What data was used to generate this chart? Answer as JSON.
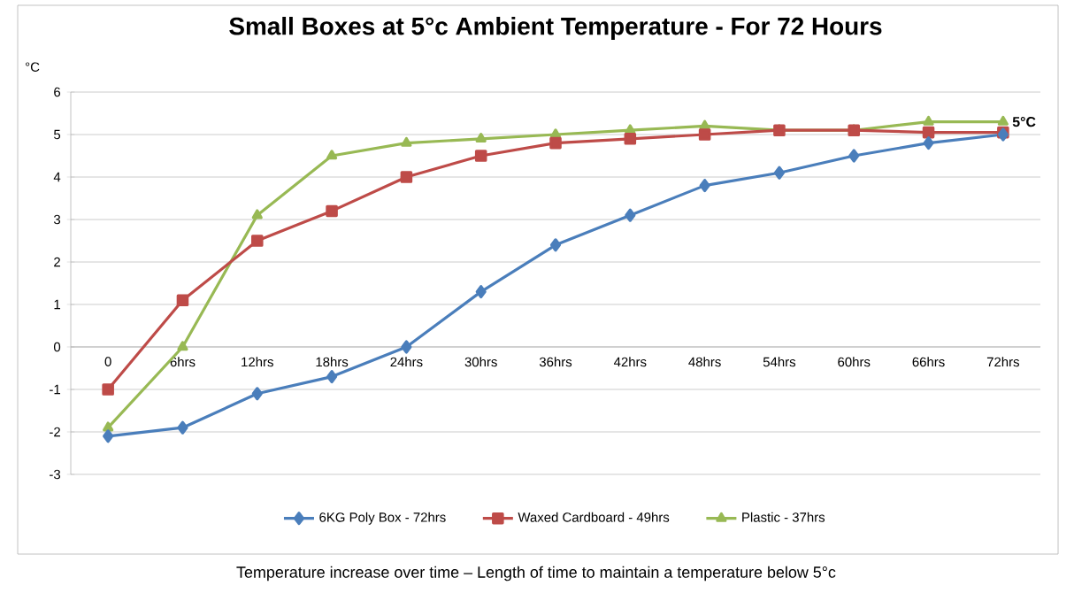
{
  "chart_data": {
    "type": "line",
    "title": "Small Boxes at 5°c Ambient Temperature - For 72 Hours",
    "ylabel": "°C",
    "categories": [
      "0",
      "6hrs",
      "12hrs",
      "18hrs",
      "24hrs",
      "30hrs",
      "36hrs",
      "42hrs",
      "48hrs",
      "54hrs",
      "60hrs",
      "66hrs",
      "72hrs"
    ],
    "series": [
      {
        "name": "6KG Poly Box - 72hrs",
        "color": "#4a7ebb",
        "marker": "diamond",
        "values": [
          -2.1,
          -1.9,
          -1.1,
          -0.7,
          0,
          1.3,
          2.4,
          3.1,
          3.8,
          4.1,
          4.5,
          4.8,
          5.0
        ]
      },
      {
        "name": "Waxed Cardboard - 49hrs",
        "color": "#be4b48",
        "marker": "square",
        "values": [
          -1.0,
          1.1,
          2.5,
          3.2,
          4.0,
          4.5,
          4.8,
          4.9,
          5.0,
          5.1,
          5.1,
          5.05,
          5.05
        ]
      },
      {
        "name": "Plastic - 37hrs",
        "color": "#98b954",
        "marker": "triangle",
        "values": [
          -1.9,
          0,
          3.1,
          4.5,
          4.8,
          4.9,
          5.0,
          5.1,
          5.2,
          5.1,
          5.1,
          5.3,
          5.3
        ]
      }
    ],
    "ylim": [
      -3,
      6
    ],
    "yticks": [
      -3,
      -2,
      -1,
      0,
      1,
      2,
      3,
      4,
      5,
      6
    ],
    "grid": "y",
    "legend": "bottom",
    "line_style": "solid",
    "annotations": [
      {
        "text": "5°C",
        "x": "72hrs",
        "y": 5.3
      },
      "Temperature increase over time – Length of time to maintain a temperature below 5°c"
    ]
  }
}
